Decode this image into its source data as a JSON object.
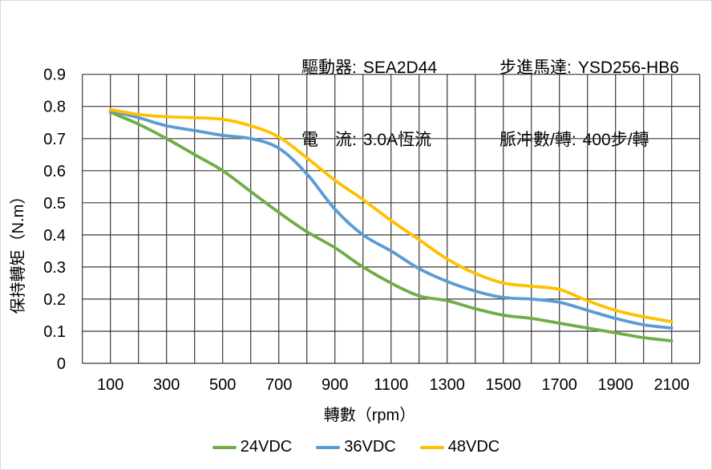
{
  "header": {
    "items": [
      {
        "label": "驅動器:",
        "value": "SEA2D44"
      },
      {
        "label": "步進馬達:",
        "value": "YSD256-HB6"
      },
      {
        "label": "電　流:",
        "value": "3.0A恆流"
      },
      {
        "label": "脈冲數/轉:",
        "value": "400步/轉"
      }
    ]
  },
  "chart_data": {
    "type": "line",
    "title": "",
    "xlabel": "轉數（rpm）",
    "ylabel": "保持轉矩（N.m）",
    "x": [
      100,
      200,
      300,
      400,
      500,
      600,
      700,
      800,
      900,
      1000,
      1100,
      1200,
      1300,
      1400,
      1500,
      1600,
      1700,
      1800,
      1900,
      2000,
      2100
    ],
    "series": [
      {
        "name": "24VDC",
        "color": "#70AD47",
        "values": [
          0.782,
          0.745,
          0.7,
          0.65,
          0.6,
          0.535,
          0.47,
          0.41,
          0.36,
          0.3,
          0.25,
          0.21,
          0.195,
          0.17,
          0.15,
          0.14,
          0.125,
          0.11,
          0.095,
          0.08,
          0.07
        ]
      },
      {
        "name": "36VDC",
        "color": "#5B9BD5",
        "values": [
          0.787,
          0.765,
          0.74,
          0.725,
          0.71,
          0.7,
          0.67,
          0.59,
          0.48,
          0.4,
          0.35,
          0.295,
          0.255,
          0.225,
          0.205,
          0.2,
          0.19,
          0.165,
          0.14,
          0.12,
          0.11
        ]
      },
      {
        "name": "48VDC",
        "color": "#FFC000",
        "values": [
          0.79,
          0.775,
          0.768,
          0.765,
          0.76,
          0.74,
          0.705,
          0.64,
          0.57,
          0.51,
          0.445,
          0.385,
          0.325,
          0.28,
          0.25,
          0.24,
          0.23,
          0.195,
          0.165,
          0.145,
          0.13
        ]
      }
    ],
    "x_ticks": [
      100,
      300,
      500,
      700,
      900,
      1100,
      1300,
      1500,
      1700,
      1900,
      2100
    ],
    "y_ticks": [
      "0",
      "0.1",
      "0.2",
      "0.3",
      "0.4",
      "0.5",
      "0.6",
      "0.7",
      "0.8",
      "0.9"
    ],
    "xlim": [
      0,
      2200
    ],
    "ylim": [
      0,
      0.9
    ],
    "grid": true,
    "grid_step_x": 100,
    "grid_step_y": 0.1,
    "grid_color": "#383838",
    "legend_position": "bottom"
  }
}
